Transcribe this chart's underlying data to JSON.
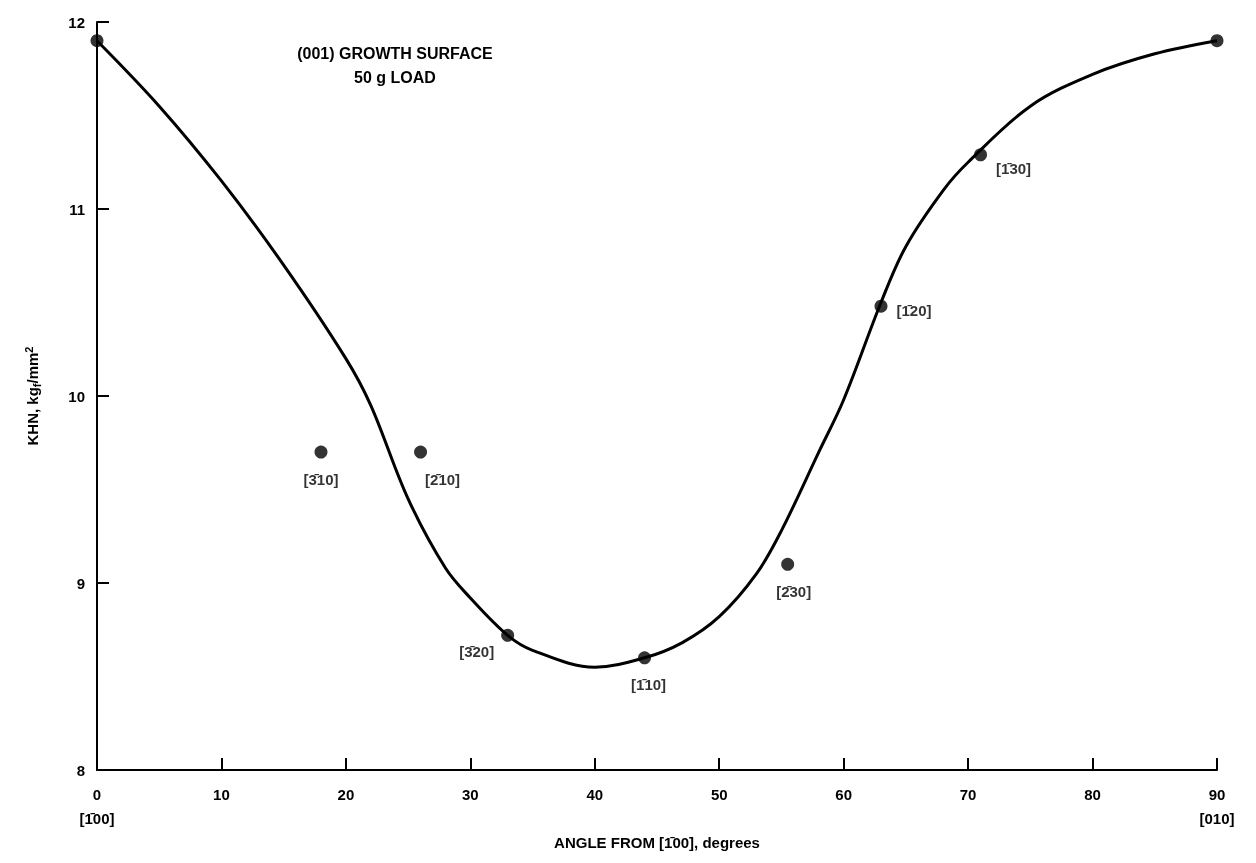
{
  "chart_data": {
    "type": "scatter",
    "title": "(001) GROWTH SURFACE",
    "subtitle": "50 g LOAD",
    "xlabel": "ANGLE FROM [1̄00], degrees",
    "ylabel": "KHN, kg$_{f}$/mm$^{2}$",
    "xlim": [
      0,
      90
    ],
    "xticks": [
      {
        "value": 0,
        "label": "0\n[1̄00]"
      },
      10,
      20,
      30,
      40,
      50,
      60,
      70,
      80,
      {
        "value": 90,
        "label": "90\n[010]"
      }
    ],
    "ylim": [
      8,
      12
    ],
    "yticks": [
      8,
      9,
      10,
      11,
      12
    ],
    "grid": false,
    "marker": "circle",
    "series": [
      {
        "color": "#000000",
        "x": [
          0,
          18,
          26,
          33,
          44,
          55.5,
          63,
          71,
          90
        ],
        "values": [
          11.9,
          9.7,
          9.7,
          8.72,
          8.6,
          9.1,
          10.48,
          11.29,
          11.9
        ],
        "value_labels": [
          null,
          "[3̄10]",
          "[2̄10]",
          "[3̄20]",
          "[1̄10]",
          "[2̄30]",
          "[1̄20]",
          "[1̄30]",
          null
        ]
      },
      {
        "type": "line",
        "color": "#000000",
        "marker": "none",
        "line_style": "solid",
        "x": [
          0,
          5,
          10,
          15,
          20,
          22,
          25,
          28,
          30,
          33,
          35,
          40,
          44,
          47,
          50,
          53,
          55,
          58,
          60,
          63,
          65,
          68,
          70,
          75,
          80,
          85,
          90
        ],
        "values": [
          11.9,
          11.55,
          11.15,
          10.7,
          10.2,
          9.95,
          9.45,
          9.08,
          8.92,
          8.72,
          8.64,
          8.55,
          8.6,
          8.68,
          8.82,
          9.05,
          9.28,
          9.7,
          9.98,
          10.5,
          10.8,
          11.1,
          11.25,
          11.55,
          11.72,
          11.83,
          11.9
        ]
      }
    ]
  }
}
